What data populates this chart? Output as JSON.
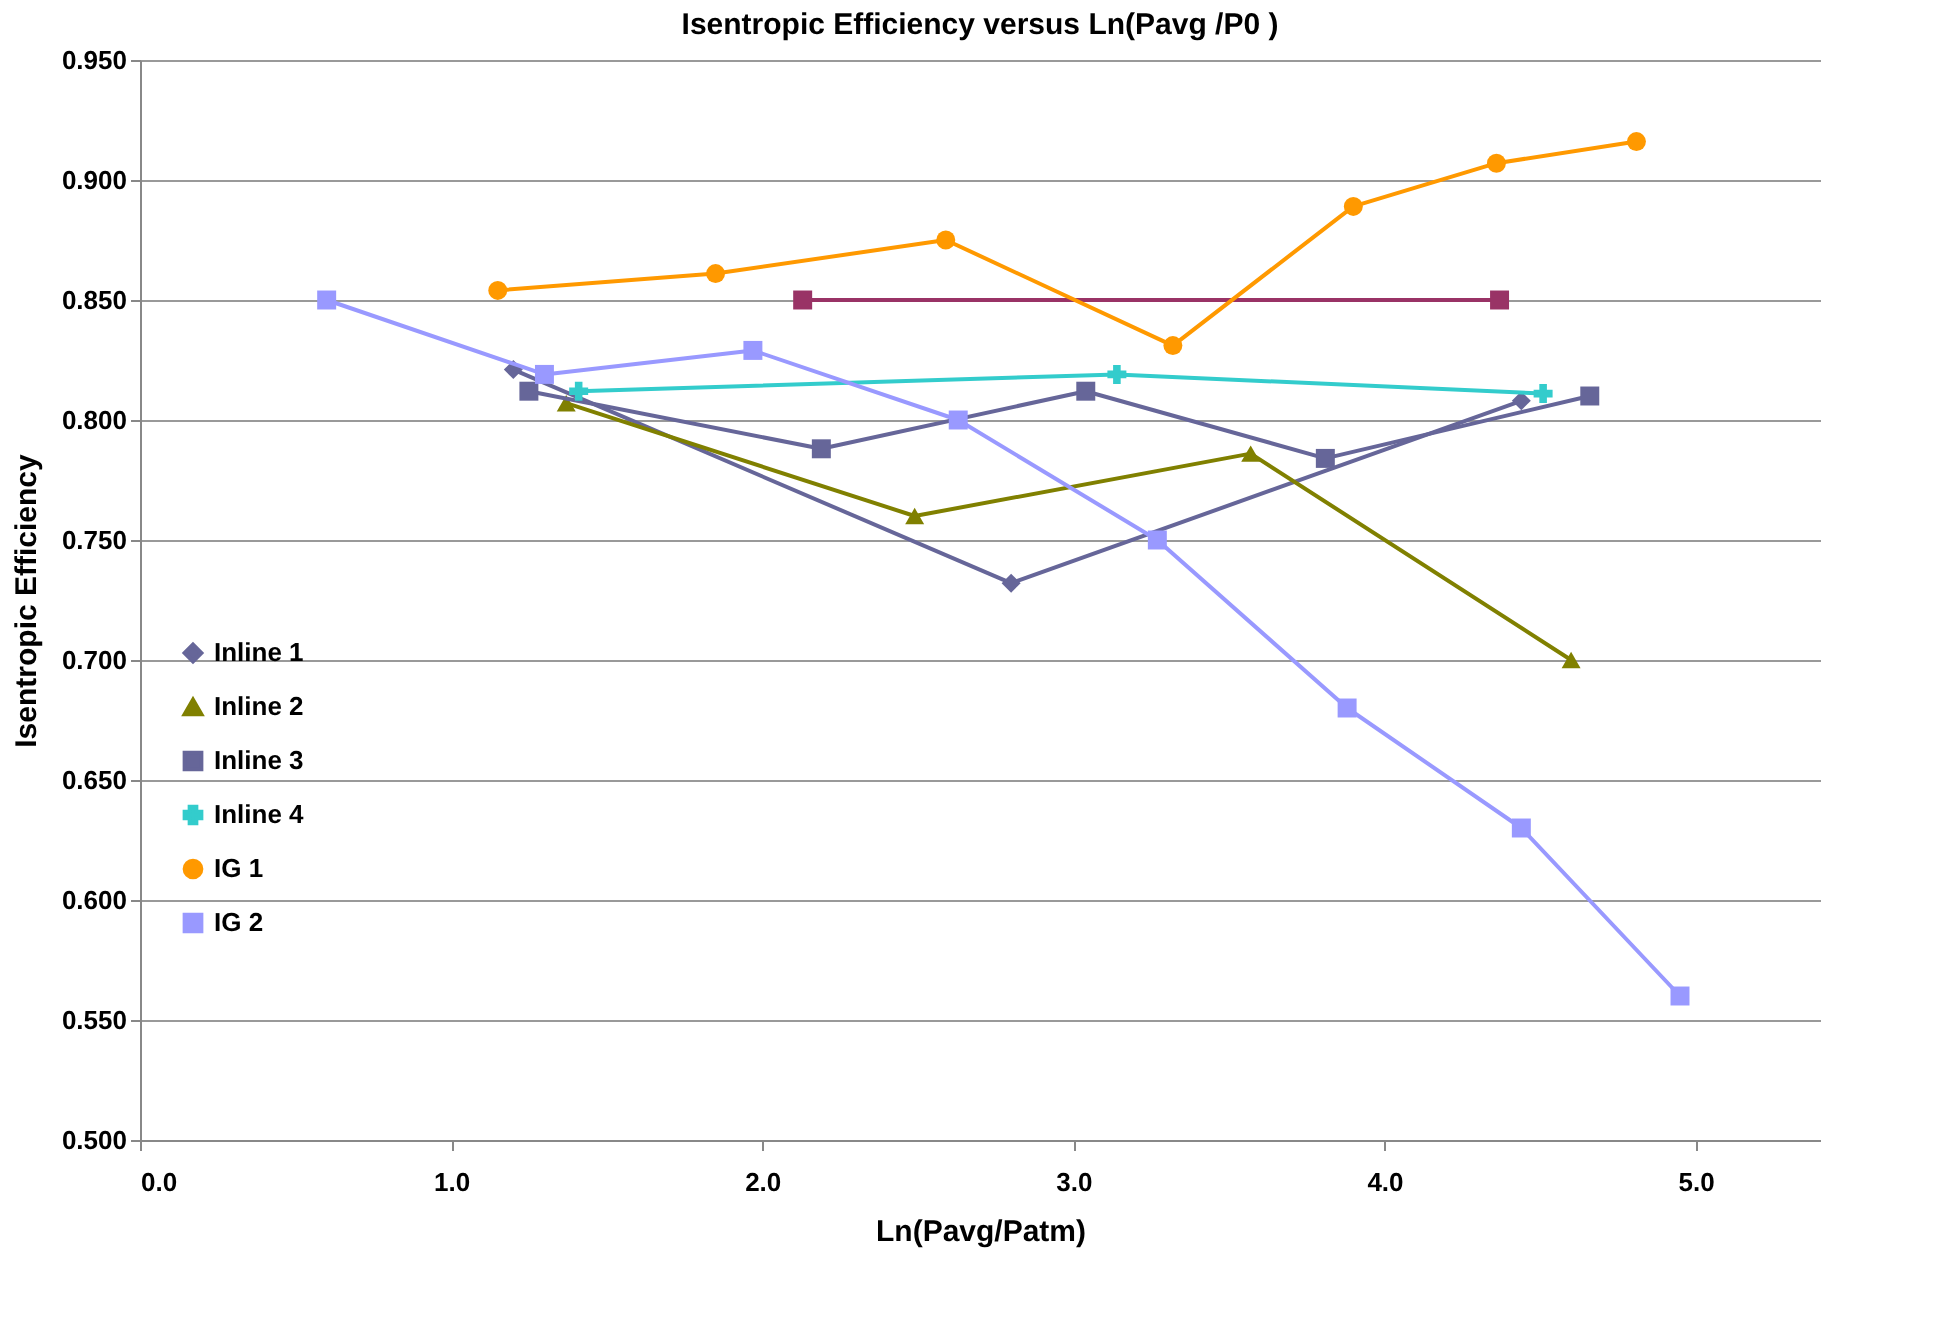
{
  "chart_data": {
    "type": "line",
    "title": "Isentropic Efficiency versus Ln(Pavg /P0 )",
    "xlabel": "Ln(Pavg/Patm)",
    "ylabel": "Isentropic Efficiency",
    "xlim": [
      0,
      5.4
    ],
    "xticks": [
      {
        "value": 0,
        "label": "0.0"
      },
      {
        "value": 1,
        "label": "1.0"
      },
      {
        "value": 2,
        "label": "2.0"
      },
      {
        "value": 3,
        "label": "3.0"
      },
      {
        "value": 4,
        "label": "4.0"
      },
      {
        "value": 5,
        "label": "5.0"
      }
    ],
    "ylim": [
      0.5,
      0.95
    ],
    "yticks": [
      {
        "value": 0.5,
        "label": "0.500"
      },
      {
        "value": 0.55,
        "label": "0.550"
      },
      {
        "value": 0.6,
        "label": "0.600"
      },
      {
        "value": 0.65,
        "label": "0.650"
      },
      {
        "value": 0.7,
        "label": "0.700"
      },
      {
        "value": 0.75,
        "label": "0.750"
      },
      {
        "value": 0.8,
        "label": "0.800"
      },
      {
        "value": 0.85,
        "label": "0.850"
      },
      {
        "value": 0.9,
        "label": "0.900"
      },
      {
        "value": 0.95,
        "label": "0.950"
      }
    ],
    "grid": "y",
    "legend": "left",
    "line_style": "solid",
    "series": [
      {
        "color": "#993366",
        "marker": "square",
        "x": [
          2.13,
          4.37
        ],
        "values": [
          0.85,
          0.85
        ]
      },
      {
        "name": "Inline 1",
        "color": "#666699",
        "marker": "diamond",
        "x": [
          1.2,
          2.8,
          4.44
        ],
        "values": [
          0.821,
          0.732,
          0.808
        ]
      },
      {
        "name": "Inline 2",
        "color": "#808000",
        "marker": "triangle",
        "x": [
          1.37,
          2.49,
          3.57,
          4.6
        ],
        "values": [
          0.807,
          0.76,
          0.786,
          0.7
        ]
      },
      {
        "name": "Inline 3",
        "color": "#666699",
        "marker": "square",
        "x": [
          1.25,
          2.19,
          3.04,
          3.81,
          4.66
        ],
        "values": [
          0.812,
          0.788,
          0.812,
          0.784,
          0.81
        ]
      },
      {
        "name": "Inline 4",
        "color": "#33cccc",
        "marker": "cross",
        "x": [
          1.41,
          3.14,
          4.51
        ],
        "values": [
          0.812,
          0.819,
          0.811
        ]
      },
      {
        "name": "IG 1",
        "color": "#ff9900",
        "marker": "circle",
        "x": [
          1.15,
          1.85,
          2.59,
          3.32,
          3.9,
          4.36,
          4.81
        ],
        "values": [
          0.854,
          0.861,
          0.875,
          0.831,
          0.889,
          0.907,
          0.916
        ]
      },
      {
        "name": "IG 2",
        "color": "#9999ff",
        "marker": "square",
        "x": [
          0.6,
          1.3,
          1.97,
          2.63,
          3.27,
          3.88,
          4.44,
          4.95
        ],
        "values": [
          0.85,
          0.819,
          0.829,
          0.8,
          0.75,
          0.68,
          0.63,
          0.56
        ]
      }
    ]
  }
}
